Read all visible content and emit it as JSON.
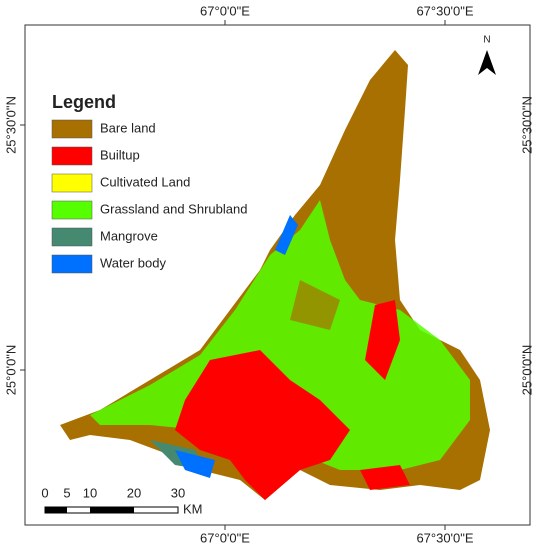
{
  "map": {
    "graticule": {
      "top": [
        "67°0'0\"E",
        "67°30'0\"E"
      ],
      "bottom": [
        "67°0'0\"E",
        "67°30'0\"E"
      ],
      "left": [
        "25°30'0\"N",
        "25°0'0\"N"
      ],
      "right": [
        "25°30'0\"N",
        "25°0'0\"N"
      ]
    },
    "legend": {
      "title": "Legend",
      "items": [
        {
          "label": "Bare land",
          "color": "#a87000"
        },
        {
          "label": "Builtup",
          "color": "#ff0000"
        },
        {
          "label": "Cultivated Land",
          "color": "#ffff00"
        },
        {
          "label": "Grassland and Shrubland",
          "color": "#55ff00"
        },
        {
          "label": "Mangrove",
          "color": "#448970"
        },
        {
          "label": "Water body",
          "color": "#0070ff"
        }
      ]
    },
    "scale_bar": {
      "labels": [
        "0",
        "5",
        "10",
        "20",
        "30"
      ],
      "unit": "KM"
    },
    "north_arrow": "N"
  }
}
